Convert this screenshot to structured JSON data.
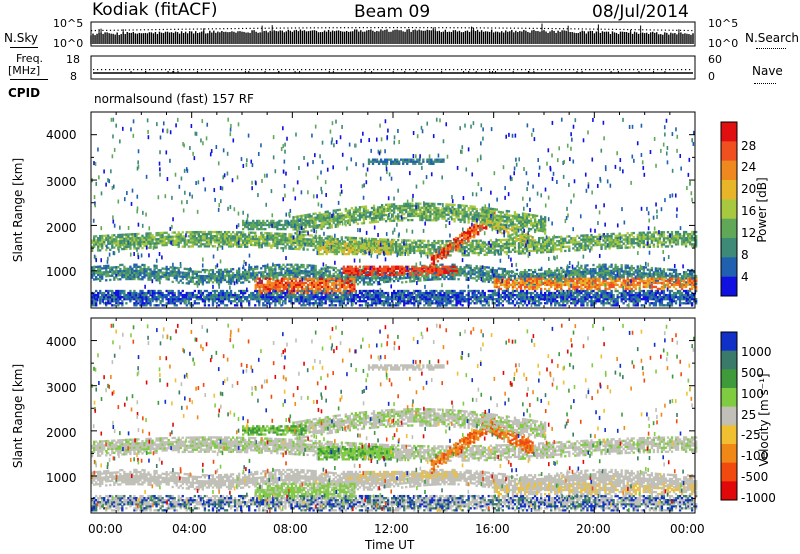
{
  "header": {
    "station": "Kodiak (fitACF)",
    "beam": "Beam 09",
    "date": "08/Jul/2014"
  },
  "top_panel": {
    "left_label": "N.Sky",
    "right_label": "N.Search",
    "left_ticks": [
      "10^5",
      "10^0"
    ],
    "right_ticks": [
      "10^5",
      "10^0"
    ]
  },
  "freq_panel": {
    "left_label_1": "Freq.",
    "left_label_2": "[MHz]",
    "right_label": "Nave",
    "left_ticks": [
      "18",
      "8"
    ],
    "right_ticks": [
      "60",
      "0"
    ]
  },
  "cpid": {
    "label": "CPID",
    "value": "normalsound (fast) 157 RF"
  },
  "x_axis": {
    "title": "Time UT",
    "ticks": [
      "00:00",
      "04:00",
      "08:00",
      "12:00",
      "16:00",
      "20:00",
      "00:00"
    ]
  },
  "chart_data": [
    {
      "type": "heatmap",
      "title": "",
      "xlabel": "",
      "ylabel": "Slant Range [km]",
      "xlim": [
        0,
        24
      ],
      "ylim": [
        180,
        4500
      ],
      "yticks": [
        "1000",
        "2000",
        "3000",
        "4000"
      ],
      "colorbar": {
        "label": "Power [dB]",
        "ticks": [
          "4",
          "8",
          "12",
          "16",
          "20",
          "24",
          "28"
        ],
        "colors": [
          "#1010e0",
          "#2060b0",
          "#3d8a78",
          "#60a858",
          "#a8c840",
          "#e8b428",
          "#f08820",
          "#f05020",
          "#e01010"
        ]
      }
    },
    {
      "type": "heatmap",
      "title": "",
      "xlabel": "Time UT",
      "ylabel": "Slant Range [km]",
      "xlim": [
        0,
        24
      ],
      "ylim": [
        180,
        4500
      ],
      "yticks": [
        "1000",
        "2000",
        "3000",
        "4000"
      ],
      "colorbar": {
        "label": "Velocity [m s⁻¹]",
        "ticks": [
          "1000",
          "500",
          "100",
          "25",
          "-25",
          "-100",
          "-500",
          "-1000"
        ],
        "colors": [
          "#1030c8",
          "#3a7a6a",
          "#3f9a3c",
          "#80cc40",
          "#c0c0b8",
          "#f0c030",
          "#f08818",
          "#f04a10",
          "#e00808"
        ]
      }
    }
  ]
}
